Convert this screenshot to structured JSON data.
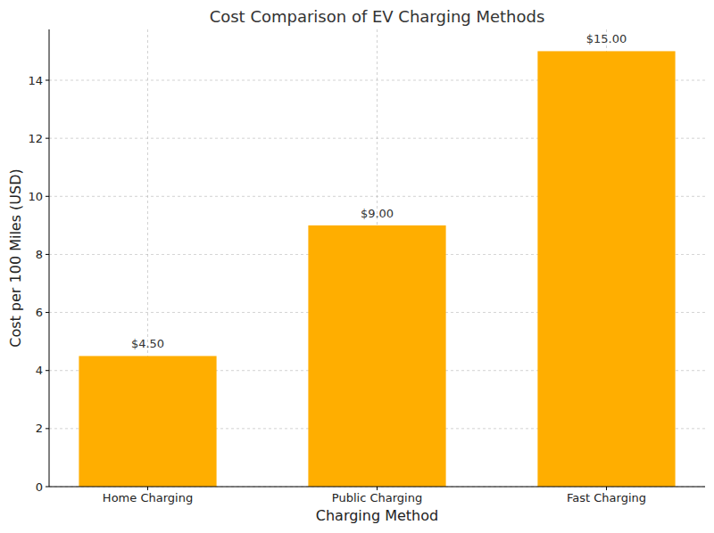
{
  "chart_data": {
    "type": "bar",
    "title": "Cost Comparison of EV Charging Methods",
    "x_label": "Charging Method",
    "y_label": "Cost per 100 Miles (USD)",
    "categories": [
      "Home Charging",
      "Public Charging",
      "Fast Charging"
    ],
    "values": [
      4.5,
      9,
      15
    ],
    "value_labels": [
      "$4.50",
      "$9.00",
      "$15.00"
    ],
    "color": "#ffae00",
    "ylim": [
      0,
      15.75
    ],
    "yticks": [
      0,
      2,
      4,
      6,
      8,
      10,
      12,
      14
    ],
    "grid": true,
    "data_labels": true
  }
}
